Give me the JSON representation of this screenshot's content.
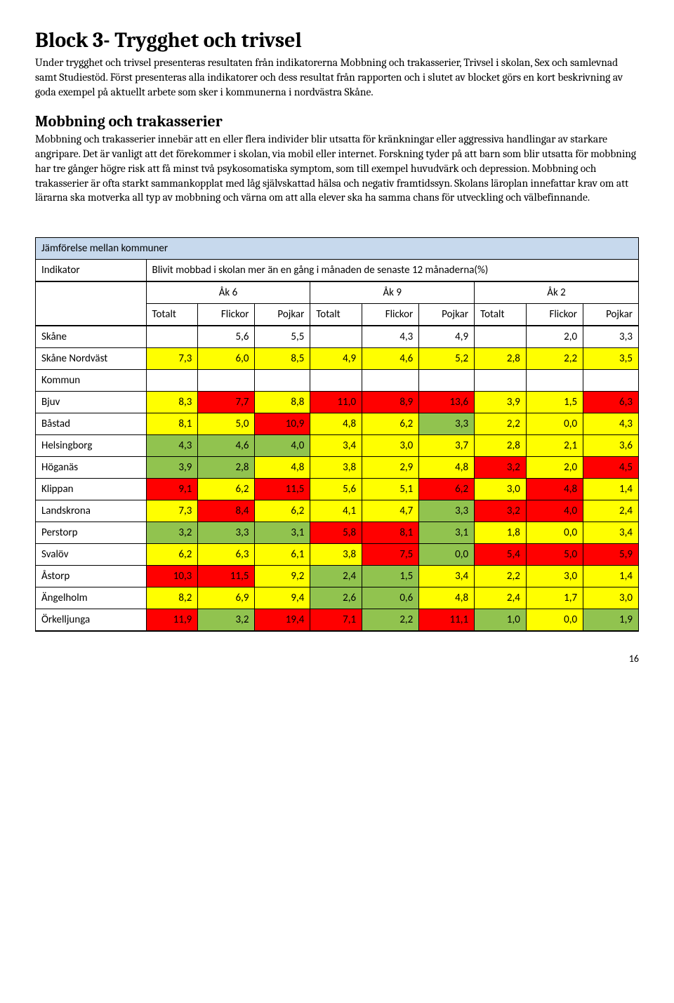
{
  "title": "Block 3- Trygghet och trivsel",
  "intro1": "Under trygghet och trivsel presenteras resultaten från indikatorerna Mobbning och trakasserier, Trivsel i skolan, Sex och samlevnad samt Studiestöd. Först presenteras alla indikatorer och dess resultat från rapporten och i slutet av blocket görs en kort beskrivning av goda exempel på aktuellt arbete som sker i kommunerna i nordvästra Skåne.",
  "subheading": "Mobbning och trakasserier",
  "intro2": "Mobbning och trakasserier innebär att en eller flera individer blir utsatta för kränkningar eller aggressiva handlingar av starkare angripare. Det är vanligt att det förekommer i skolan, via mobil eller internet. Forskning tyder på att barn som blir utsatta för mobbning har tre gånger högre risk att få minst två psykosomatiska symptom, som till exempel huvudvärk och depression. Mobbning och trakasserier är ofta starkt sammankopplat med låg självskattad hälsa och negativ framtidssyn. Skolans läroplan innefattar krav om att lärarna ska motverka all typ av mobbning och värna om att alla elever ska ha samma chans för utveckling och välbefinnande.",
  "tableHeader": "Jämförelse mellan kommuner",
  "indikatorLabel": "Indikator",
  "indikatorText": "Blivit mobbad i skolan mer än en gång i månaden de senaste 12 månaderna(%)",
  "groups": {
    "ak6": "Åk 6",
    "ak9": "Åk 9",
    "ak2": "Åk 2"
  },
  "sub": {
    "tot": "Totalt",
    "fl": "Flickor",
    "po": "Pojkar"
  },
  "labels": {
    "kommun": "Kommun"
  },
  "rows": [
    {
      "name": "Skåne",
      "cells": [
        {
          "v": "",
          "c": "nob"
        },
        {
          "v": "5,6",
          "c": "nob"
        },
        {
          "v": "5,5",
          "c": "nob"
        },
        {
          "v": "",
          "c": "nob"
        },
        {
          "v": "4,3",
          "c": "nob"
        },
        {
          "v": "4,9",
          "c": "nob"
        },
        {
          "v": "",
          "c": "nob"
        },
        {
          "v": "2,0",
          "c": "nob"
        },
        {
          "v": "3,3",
          "c": "nob"
        }
      ]
    },
    {
      "name": "Skåne Nordväst",
      "cells": [
        {
          "v": "7,3",
          "c": "yel"
        },
        {
          "v": "6,0",
          "c": "yel"
        },
        {
          "v": "8,5",
          "c": "yel"
        },
        {
          "v": "4,9",
          "c": "yel"
        },
        {
          "v": "4,6",
          "c": "yel"
        },
        {
          "v": "5,2",
          "c": "yel"
        },
        {
          "v": "2,8",
          "c": "yel"
        },
        {
          "v": "2,2",
          "c": "yel"
        },
        {
          "v": "3,5",
          "c": "yel"
        }
      ]
    },
    {
      "name": "Kommun",
      "cells": [
        {
          "v": "",
          "c": "nob"
        },
        {
          "v": "",
          "c": "nob"
        },
        {
          "v": "",
          "c": "nob"
        },
        {
          "v": "",
          "c": "nob"
        },
        {
          "v": "",
          "c": "nob"
        },
        {
          "v": "",
          "c": "nob"
        },
        {
          "v": "",
          "c": "nob"
        },
        {
          "v": "",
          "c": "nob"
        },
        {
          "v": "",
          "c": "nob"
        }
      ]
    },
    {
      "name": "Bjuv",
      "cells": [
        {
          "v": "8,3",
          "c": "yel"
        },
        {
          "v": "7,7",
          "c": "red"
        },
        {
          "v": "8,8",
          "c": "yel"
        },
        {
          "v": "11,0",
          "c": "red"
        },
        {
          "v": "8,9",
          "c": "red"
        },
        {
          "v": "13,6",
          "c": "red"
        },
        {
          "v": "3,9",
          "c": "yel"
        },
        {
          "v": "1,5",
          "c": "yel"
        },
        {
          "v": "6,3",
          "c": "red"
        }
      ]
    },
    {
      "name": "Båstad",
      "cells": [
        {
          "v": "8,1",
          "c": "yel"
        },
        {
          "v": "5,0",
          "c": "yel"
        },
        {
          "v": "10,9",
          "c": "red"
        },
        {
          "v": "4,8",
          "c": "yel"
        },
        {
          "v": "6,2",
          "c": "yel"
        },
        {
          "v": "3,3",
          "c": "grn"
        },
        {
          "v": "2,2",
          "c": "yel"
        },
        {
          "v": "0,0",
          "c": "yel"
        },
        {
          "v": "4,3",
          "c": "yel"
        }
      ]
    },
    {
      "name": "Helsingborg",
      "cells": [
        {
          "v": "4,3",
          "c": "grn"
        },
        {
          "v": "4,6",
          "c": "grn"
        },
        {
          "v": "4,0",
          "c": "grn"
        },
        {
          "v": "3,4",
          "c": "yel"
        },
        {
          "v": "3,0",
          "c": "yel"
        },
        {
          "v": "3,7",
          "c": "yel"
        },
        {
          "v": "2,8",
          "c": "yel"
        },
        {
          "v": "2,1",
          "c": "yel"
        },
        {
          "v": "3,6",
          "c": "yel"
        }
      ]
    },
    {
      "name": "Höganäs",
      "cells": [
        {
          "v": "3,9",
          "c": "grn"
        },
        {
          "v": "2,8",
          "c": "grn"
        },
        {
          "v": "4,8",
          "c": "yel"
        },
        {
          "v": "3,8",
          "c": "yel"
        },
        {
          "v": "2,9",
          "c": "yel"
        },
        {
          "v": "4,8",
          "c": "yel"
        },
        {
          "v": "3,2",
          "c": "red"
        },
        {
          "v": "2,0",
          "c": "yel"
        },
        {
          "v": "4,5",
          "c": "red"
        }
      ]
    },
    {
      "name": "Klippan",
      "cells": [
        {
          "v": "9,1",
          "c": "red"
        },
        {
          "v": "6,2",
          "c": "yel"
        },
        {
          "v": "11,5",
          "c": "red"
        },
        {
          "v": "5,6",
          "c": "yel"
        },
        {
          "v": "5,1",
          "c": "yel"
        },
        {
          "v": "6,2",
          "c": "red"
        },
        {
          "v": "3,0",
          "c": "yel"
        },
        {
          "v": "4,8",
          "c": "red"
        },
        {
          "v": "1,4",
          "c": "yel"
        }
      ]
    },
    {
      "name": "Landskrona",
      "cells": [
        {
          "v": "7,3",
          "c": "yel"
        },
        {
          "v": "8,4",
          "c": "red"
        },
        {
          "v": "6,2",
          "c": "yel"
        },
        {
          "v": "4,1",
          "c": "yel"
        },
        {
          "v": "4,7",
          "c": "yel"
        },
        {
          "v": "3,3",
          "c": "grn"
        },
        {
          "v": "3,2",
          "c": "red"
        },
        {
          "v": "4,0",
          "c": "red"
        },
        {
          "v": "2,4",
          "c": "yel"
        }
      ]
    },
    {
      "name": "Perstorp",
      "cells": [
        {
          "v": "3,2",
          "c": "grn"
        },
        {
          "v": "3,3",
          "c": "grn"
        },
        {
          "v": "3,1",
          "c": "grn"
        },
        {
          "v": "5,8",
          "c": "red"
        },
        {
          "v": "8,1",
          "c": "red"
        },
        {
          "v": "3,1",
          "c": "grn"
        },
        {
          "v": "1,8",
          "c": "yel"
        },
        {
          "v": "0,0",
          "c": "yel"
        },
        {
          "v": "3,4",
          "c": "yel"
        }
      ]
    },
    {
      "name": "Svalöv",
      "cells": [
        {
          "v": "6,2",
          "c": "yel"
        },
        {
          "v": "6,3",
          "c": "yel"
        },
        {
          "v": "6,1",
          "c": "yel"
        },
        {
          "v": "3,8",
          "c": "yel"
        },
        {
          "v": "7,5",
          "c": "red"
        },
        {
          "v": "0,0",
          "c": "grn"
        },
        {
          "v": "5,4",
          "c": "red"
        },
        {
          "v": "5,0",
          "c": "red"
        },
        {
          "v": "5,9",
          "c": "red"
        }
      ]
    },
    {
      "name": "Åstorp",
      "cells": [
        {
          "v": "10,3",
          "c": "red"
        },
        {
          "v": "11,5",
          "c": "red"
        },
        {
          "v": "9,2",
          "c": "yel"
        },
        {
          "v": "2,4",
          "c": "grn"
        },
        {
          "v": "1,5",
          "c": "grn"
        },
        {
          "v": "3,4",
          "c": "yel"
        },
        {
          "v": "2,2",
          "c": "yel"
        },
        {
          "v": "3,0",
          "c": "yel"
        },
        {
          "v": "1,4",
          "c": "yel"
        }
      ]
    },
    {
      "name": "Ängelholm",
      "cells": [
        {
          "v": "8,2",
          "c": "yel"
        },
        {
          "v": "6,9",
          "c": "yel"
        },
        {
          "v": "9,4",
          "c": "yel"
        },
        {
          "v": "2,6",
          "c": "grn"
        },
        {
          "v": "0,6",
          "c": "grn"
        },
        {
          "v": "4,8",
          "c": "yel"
        },
        {
          "v": "2,4",
          "c": "yel"
        },
        {
          "v": "1,7",
          "c": "yel"
        },
        {
          "v": "3,0",
          "c": "yel"
        }
      ]
    },
    {
      "name": "Örkelljunga",
      "cells": [
        {
          "v": "11,9",
          "c": "red"
        },
        {
          "v": "3,2",
          "c": "grn"
        },
        {
          "v": "19,4",
          "c": "red"
        },
        {
          "v": "7,1",
          "c": "red"
        },
        {
          "v": "2,2",
          "c": "grn"
        },
        {
          "v": "11,1",
          "c": "red"
        },
        {
          "v": "1,0",
          "c": "grn"
        },
        {
          "v": "0,0",
          "c": "yel"
        },
        {
          "v": "1,9",
          "c": "grn"
        }
      ]
    }
  ],
  "pagenum": "16"
}
